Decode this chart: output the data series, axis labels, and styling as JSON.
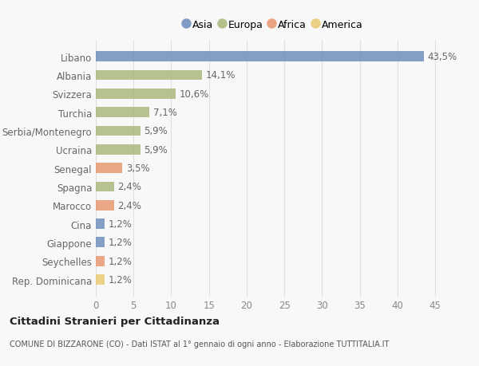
{
  "countries": [
    "Libano",
    "Albania",
    "Svizzera",
    "Turchia",
    "Serbia/Montenegro",
    "Ucraina",
    "Senegal",
    "Spagna",
    "Marocco",
    "Cina",
    "Giappone",
    "Seychelles",
    "Rep. Dominicana"
  ],
  "values": [
    43.5,
    14.1,
    10.6,
    7.1,
    5.9,
    5.9,
    3.5,
    2.4,
    2.4,
    1.2,
    1.2,
    1.2,
    1.2
  ],
  "labels": [
    "43,5%",
    "14,1%",
    "10,6%",
    "7,1%",
    "5,9%",
    "5,9%",
    "3,5%",
    "2,4%",
    "2,4%",
    "1,2%",
    "1,2%",
    "1,2%",
    "1,2%"
  ],
  "continents": [
    "Asia",
    "Europa",
    "Europa",
    "Europa",
    "Europa",
    "Europa",
    "Africa",
    "Europa",
    "Africa",
    "Asia",
    "Asia",
    "Africa",
    "America"
  ],
  "continent_colors": {
    "Asia": "#6b8cba",
    "Europa": "#a8b87a",
    "Africa": "#e8956d",
    "America": "#e8c96d"
  },
  "legend_order": [
    "Asia",
    "Europa",
    "Africa",
    "America"
  ],
  "title": "Cittadini Stranieri per Cittadinanza",
  "subtitle": "COMUNE DI BIZZARONE (CO) - Dati ISTAT al 1° gennaio di ogni anno - Elaborazione TUTTITALIA.IT",
  "xlim": [
    0,
    47
  ],
  "xticks": [
    0,
    5,
    10,
    15,
    20,
    25,
    30,
    35,
    40,
    45
  ],
  "background_color": "#f8f8f8",
  "grid_color": "#e0e0e0",
  "bar_height": 0.55,
  "label_fontsize": 8.5,
  "ytick_fontsize": 8.5,
  "xtick_fontsize": 8.5
}
